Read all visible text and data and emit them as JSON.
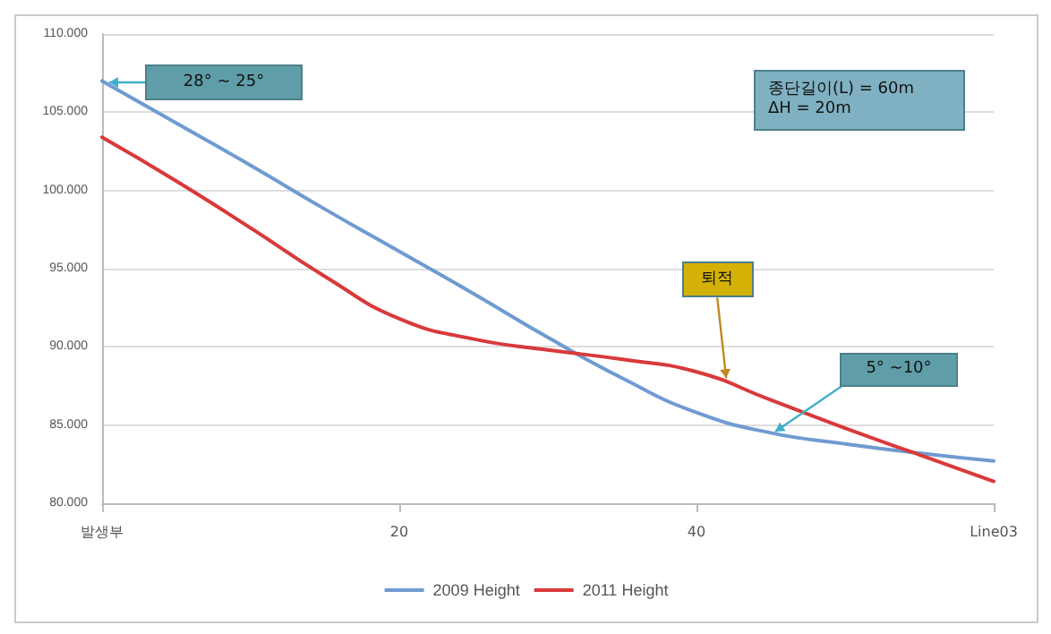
{
  "chart_data": {
    "type": "line",
    "x": [
      0,
      5,
      10,
      15,
      20,
      25,
      30,
      35,
      40,
      45,
      50,
      55,
      60
    ],
    "series": [
      {
        "name": "2009 Height",
        "color": "#6f9bd1",
        "values": [
          107,
          104.3,
          101.6,
          98.8,
          96.1,
          93.4,
          90.6,
          88.0,
          85.8,
          84.5,
          83.8,
          83.2,
          82.7
        ]
      },
      {
        "name": "2011 Height",
        "color": "#d9393a",
        "values": [
          103.4,
          100.6,
          97.6,
          94.5,
          91.8,
          90.5,
          89.8,
          89.2,
          88.4,
          86.6,
          84.8,
          83.1,
          81.4
        ]
      }
    ],
    "xlim": [
      0,
      60
    ],
    "xticks": [
      {
        "value": 0,
        "label": "발생부"
      },
      20,
      40,
      {
        "value": 60,
        "label": "Line03"
      }
    ],
    "ylim": [
      80,
      110
    ],
    "yticks": [
      {
        "value": 80,
        "label": "80.000"
      },
      {
        "value": 85,
        "label": "85.000"
      },
      {
        "value": 90,
        "label": "90.000"
      },
      {
        "value": 95,
        "label": "95.000"
      },
      {
        "value": 100,
        "label": "100.000"
      },
      {
        "value": 105,
        "label": "105.000"
      },
      {
        "value": 110,
        "label": "110.000"
      }
    ],
    "annotations": [
      "28° ~ 25°",
      "종단길이(L) = 60m\nΔH = 20m",
      {
        "text": "퇴적",
        "x": 42,
        "y": 88
      },
      "5° ~10°"
    ],
    "grid": "y",
    "legend": "bottom",
    "marker": "none",
    "line_style": "solid"
  }
}
